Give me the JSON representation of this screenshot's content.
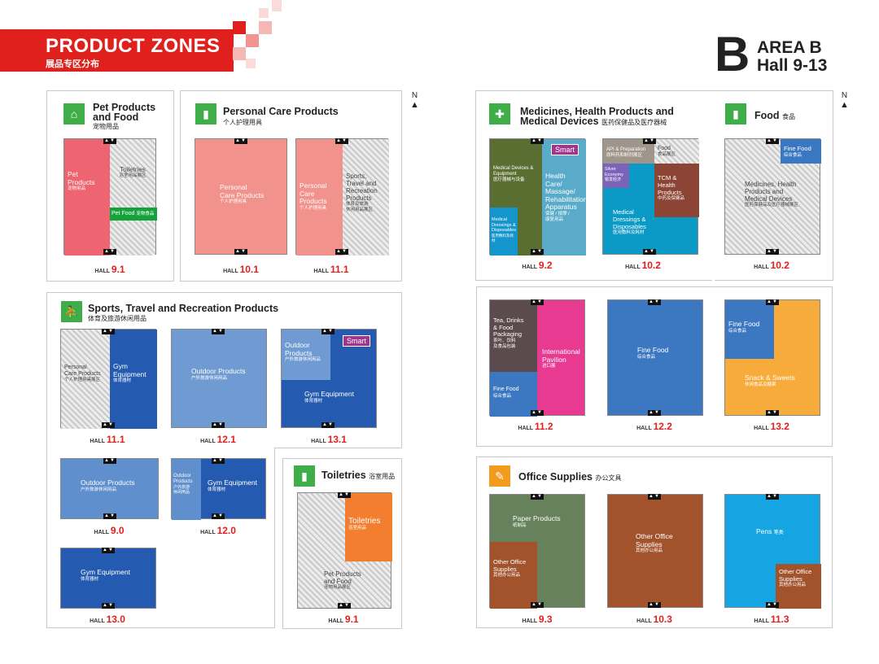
{
  "header": {
    "title": "PRODUCT ZONES",
    "subtitle": "展品专区分布",
    "area_letter": "B",
    "area_label": "AREA B",
    "area_halls": "Hall 9-13",
    "red": "#e0201c"
  },
  "compass": "N",
  "door": "▲▼",
  "hall_prefix": "HALL",
  "sections": {
    "pet": {
      "title1": "Pet Products",
      "title2": "and Food",
      "cn": "宠物用品"
    },
    "personal": {
      "title": "Personal Care Products",
      "cn": "个人护理用具"
    },
    "medicines": {
      "title1": "Medicines, Health Products and",
      "title2": "Medical Devices",
      "cn": "医药保健品及医疗器械"
    },
    "food": {
      "title": "Food",
      "cn": "食品"
    },
    "sports": {
      "title": "Sports, Travel and Recreation Products",
      "cn": "体育及旅游休闲用品"
    },
    "toiletries": {
      "title": "Toiletries",
      "cn": "浴室用品"
    },
    "office": {
      "title": "Office Supplies",
      "cn": "办公文具"
    }
  },
  "halls": {
    "h91": {
      "num": "9.1",
      "z1": "Pet",
      "z1b": "Products",
      "z1cn": "宠物用品",
      "z2": "Toiletries",
      "z2cn": "浴室用品展区",
      "z3": "Pet Food",
      "z3cn": "宠物食品"
    },
    "h101": {
      "num": "10.1",
      "z1": "Personal",
      "z1b": "Care Products",
      "z1cn": "个人护理用具"
    },
    "h111": {
      "num": "11.1",
      "z1": "Personal",
      "z1b": "Care Products",
      "z1cn": "个人护理用具",
      "z2a": "Sports,",
      "z2b": "Travel and",
      "z2c": "Recreation",
      "z2d": "Products",
      "z2cn": "体育及旅游",
      "z2cn2": "休闲用品展区"
    },
    "h92": {
      "num": "9.2",
      "z1a": "Medical Devices &",
      "z1b": "Equipment",
      "z1cn": "医疗器械与设备",
      "z2a": "Health Care/",
      "z2b": "Massage/",
      "z2c": "Rehabilitation",
      "z2d": "Apparatus",
      "z2cn": "保健 / 按摩 /",
      "z2cn2": "康复用品",
      "z3a": "Medical",
      "z3b": "Dressings &",
      "z3c": "Disposables",
      "z3cn": "医用敷料及耗材",
      "smart": "Smart"
    },
    "h102": {
      "num": "10.2",
      "z1": "API & Preparation",
      "z1cn": "原料药和制剂展区",
      "z2": "Food",
      "z2cn": "食品展区",
      "z3a": "Silver",
      "z3b": "Economy",
      "z3cn": "银发经济",
      "z4a": "TCM &",
      "z4b": "Health",
      "z4c": "Products",
      "z4cn": "中药及保健品",
      "z5a": "Medical",
      "z5b": "Dressings &",
      "z5c": "Disposables",
      "z5cn": "医用敷料及耗材"
    },
    "h102f": {
      "num": "10.2",
      "z1": "Fine Food",
      "z1cn": "综合食品",
      "z2a": "Medicines, Health",
      "z2b": "Products and",
      "z2c": "Medical Devices",
      "z2cn": "医药保健品及医疗器械展区"
    },
    "h112": {
      "num": "11.2",
      "z1a": "Tea, Drinks",
      "z1b": "& Food",
      "z1c": "Packaging",
      "z1cn": "茶叶、饮料",
      "z1cn2": "及食品包装",
      "z2": "Fine Food",
      "z2cn": "综合食品",
      "z3a": "International",
      "z3b": "Pavilion",
      "z3cn": "进口展"
    },
    "h122": {
      "num": "12.2",
      "z1": "Fine Food",
      "z1cn": "综合食品"
    },
    "h132": {
      "num": "13.2",
      "z1": "Fine Food",
      "z1cn": "综合食品",
      "z2": "Snack & Sweets",
      "z2cn": "休闲食品及糖果"
    },
    "h111s": {
      "num": "11.1",
      "z1a": "Personal",
      "z1b": "Care Products",
      "z1cn": "个人护理用具展区",
      "z2a": "Gym",
      "z2b": "Equipment",
      "z2cn": "体育器材"
    },
    "h121": {
      "num": "12.1",
      "z1": "Outdoor Products",
      "z1cn": "户外旅游休闲用品"
    },
    "h131": {
      "num": "13.1",
      "z1a": "Outdoor",
      "z1b": "Products",
      "z1cn": "户外旅游休闲用品",
      "z2": "Gym Equipment",
      "z2cn": "体育器材",
      "smart": "Smart"
    },
    "h90": {
      "num": "9.0",
      "z1": "Outdoor Products",
      "z1cn": "户外旅游休闲用品"
    },
    "h120": {
      "num": "12.0",
      "z1a": "Outdoor",
      "z1b": "Products",
      "z1cn": "户外旅游",
      "z1cn2": "休闲用品",
      "z2": "Gym Equipment",
      "z2cn": "体育器材"
    },
    "h130": {
      "num": "13.0",
      "z1": "Gym Equipment",
      "z1cn": "体育器材"
    },
    "h91t": {
      "num": "9.1",
      "z1": "Toiletries",
      "z1cn": "浴室用品",
      "z2a": "Pet Products",
      "z2b": "and Food",
      "z2cn": "宠物用品展区"
    },
    "h93": {
      "num": "9.3",
      "z1": "Paper Products",
      "z1cn": "纸制品",
      "z2a": "Other Office",
      "z2b": "Supplies",
      "z2cn": "其他办公用品"
    },
    "h103": {
      "num": "10.3",
      "z1a": "Other Office",
      "z1b": "Supplies",
      "z1cn": "其他办公用品"
    },
    "h113": {
      "num": "11.3",
      "z1": "Pens",
      "z1cn": "笔类",
      "z2a": "Other Office",
      "z2b": "Supplies",
      "z2cn": "其他办公用品"
    }
  }
}
